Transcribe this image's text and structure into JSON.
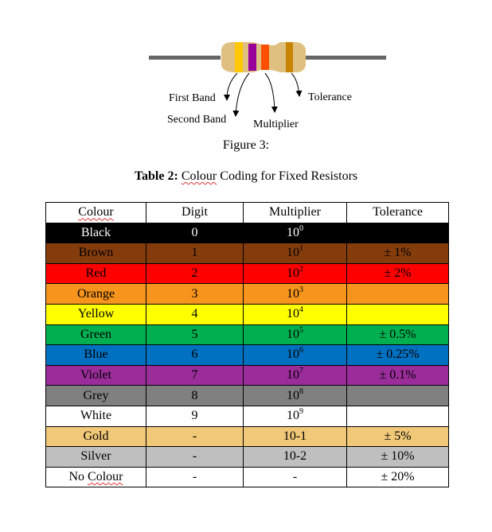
{
  "figure": {
    "labels": {
      "first_band": "First Band",
      "second_band": "Second Band",
      "multiplier": "Multiplier",
      "tolerance": "Tolerance"
    },
    "band_colors": [
      "#ffc800",
      "#990099",
      "#ff5000",
      "#c88400"
    ],
    "body_color": "#dfc080",
    "caption": "Figure 3:"
  },
  "table": {
    "title_bold": "Table 2:",
    "title_rest_squiggly": "Colour",
    "title_rest": " Coding for Fixed Resistors",
    "headers": [
      "Colour",
      "Digit",
      "Multiplier",
      "Tolerance"
    ],
    "rows": [
      {
        "colour": "Black",
        "digit": "0",
        "base": "10",
        "exp": "0",
        "tolerance": "",
        "bg": "#000000",
        "fg": "#ffffff"
      },
      {
        "colour": "Brown",
        "digit": "1",
        "base": "10",
        "exp": "1",
        "tolerance": "± 1%",
        "bg": "#843c0c",
        "fg": "#000000"
      },
      {
        "colour": "Red",
        "digit": "2",
        "base": "10",
        "exp": "2",
        "tolerance": "± 2%",
        "bg": "#ff0000",
        "fg": "#000000"
      },
      {
        "colour": "Orange",
        "digit": "3",
        "base": "10",
        "exp": "3",
        "tolerance": "",
        "bg": "#f7941d",
        "fg": "#000000"
      },
      {
        "colour": "Yellow",
        "digit": "4",
        "base": "10",
        "exp": "4",
        "tolerance": "",
        "bg": "#ffff00",
        "fg": "#000000"
      },
      {
        "colour": "Green",
        "digit": "5",
        "base": "10",
        "exp": "5",
        "tolerance": "± 0.5%",
        "bg": "#00b050",
        "fg": "#000000"
      },
      {
        "colour": "Blue",
        "digit": "6",
        "base": "10",
        "exp": "6",
        "tolerance": "± 0.25%",
        "bg": "#0070c0",
        "fg": "#000000"
      },
      {
        "colour": "Violet",
        "digit": "7",
        "base": "10",
        "exp": "7",
        "tolerance": "± 0.1%",
        "bg": "#9b2d9b",
        "fg": "#000000"
      },
      {
        "colour": "Grey",
        "digit": "8",
        "base": "10",
        "exp": "8",
        "tolerance": "",
        "bg": "#808080",
        "fg": "#000000"
      },
      {
        "colour": "White",
        "digit": "9",
        "base": "10",
        "exp": "9",
        "tolerance": "",
        "bg": "#ffffff",
        "fg": "#000000"
      },
      {
        "colour": "Gold",
        "digit": "-",
        "base": "10-1",
        "exp": "",
        "tolerance": "± 5%",
        "bg": "#f0c878",
        "fg": "#000000"
      },
      {
        "colour": "Silver",
        "digit": "-",
        "base": "10-2",
        "exp": "",
        "tolerance": "± 10%",
        "bg": "#bfbfbf",
        "fg": "#000000"
      },
      {
        "colour": "No Colour",
        "digit": "-",
        "base": "-",
        "exp": "",
        "tolerance": "± 20%",
        "bg": "#ffffff",
        "fg": "#000000"
      }
    ]
  }
}
